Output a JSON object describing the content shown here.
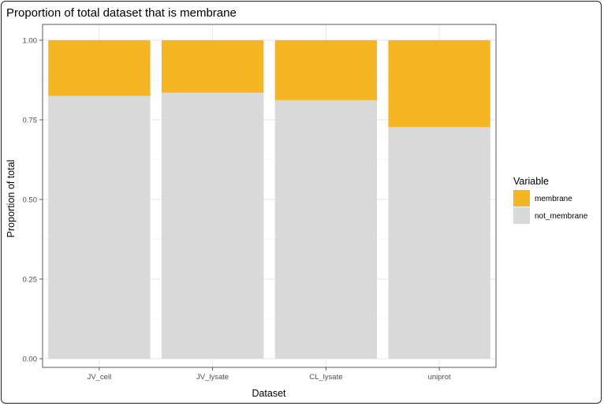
{
  "chart_data": {
    "type": "bar",
    "stacked": true,
    "title": "Proportion of total dataset that is membrane",
    "xlabel": "Dataset",
    "ylabel": "Proportion of total",
    "categories": [
      "JV_cell",
      "JV_lysate",
      "CL_lysate",
      "uniprot"
    ],
    "series": [
      {
        "name": "not_membrane",
        "values": [
          0.825,
          0.835,
          0.812,
          0.727
        ],
        "color": "#d9d9d9"
      },
      {
        "name": "membrane",
        "values": [
          0.175,
          0.165,
          0.188,
          0.273
        ],
        "color": "#f6b623"
      }
    ],
    "ylim": [
      0,
      1
    ],
    "yticks": [
      "0.00",
      "0.25",
      "0.50",
      "0.75",
      "1.00"
    ],
    "legend": {
      "title": "Variable",
      "position": "right",
      "items": [
        {
          "label": "membrane",
          "color": "#f6b623"
        },
        {
          "label": "not_membrane",
          "color": "#d9d9d9"
        }
      ]
    },
    "grid": true
  }
}
